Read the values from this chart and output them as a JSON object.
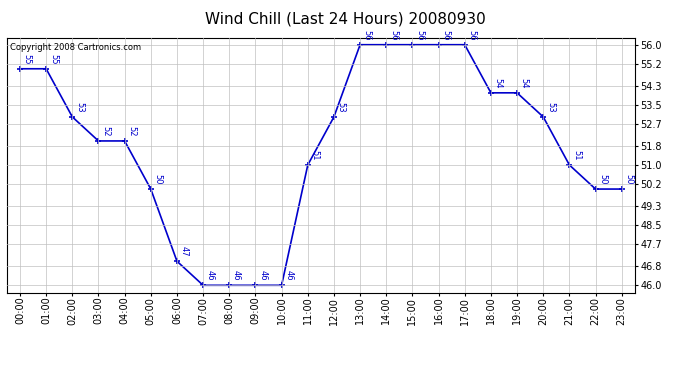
{
  "title": "Wind Chill (Last 24 Hours) 20080930",
  "copyright": "Copyright 2008 Cartronics.com",
  "hours": [
    0,
    1,
    2,
    3,
    4,
    5,
    6,
    7,
    8,
    9,
    10,
    11,
    12,
    13,
    14,
    15,
    16,
    17,
    18,
    19,
    20,
    21,
    22,
    23
  ],
  "values": [
    55,
    55,
    53,
    52,
    52,
    50,
    47,
    46,
    46,
    46,
    46,
    51,
    53,
    56,
    56,
    56,
    56,
    56,
    54,
    54,
    53,
    51,
    50,
    50
  ],
  "x_labels": [
    "00:00",
    "01:00",
    "02:00",
    "03:00",
    "04:00",
    "05:00",
    "06:00",
    "07:00",
    "08:00",
    "09:00",
    "10:00",
    "11:00",
    "12:00",
    "13:00",
    "14:00",
    "15:00",
    "16:00",
    "17:00",
    "18:00",
    "19:00",
    "20:00",
    "21:00",
    "22:00",
    "23:00"
  ],
  "y_ticks": [
    46.0,
    46.8,
    47.7,
    48.5,
    49.3,
    50.2,
    51.0,
    51.8,
    52.7,
    53.5,
    54.3,
    55.2,
    56.0
  ],
  "ylim": [
    45.7,
    56.3
  ],
  "line_color": "#0000cc",
  "marker_color": "#0000cc",
  "bg_color": "#ffffff",
  "grid_color": "#c0c0c0",
  "title_fontsize": 11,
  "tick_fontsize": 7,
  "annotation_fontsize": 6,
  "copyright_fontsize": 6
}
